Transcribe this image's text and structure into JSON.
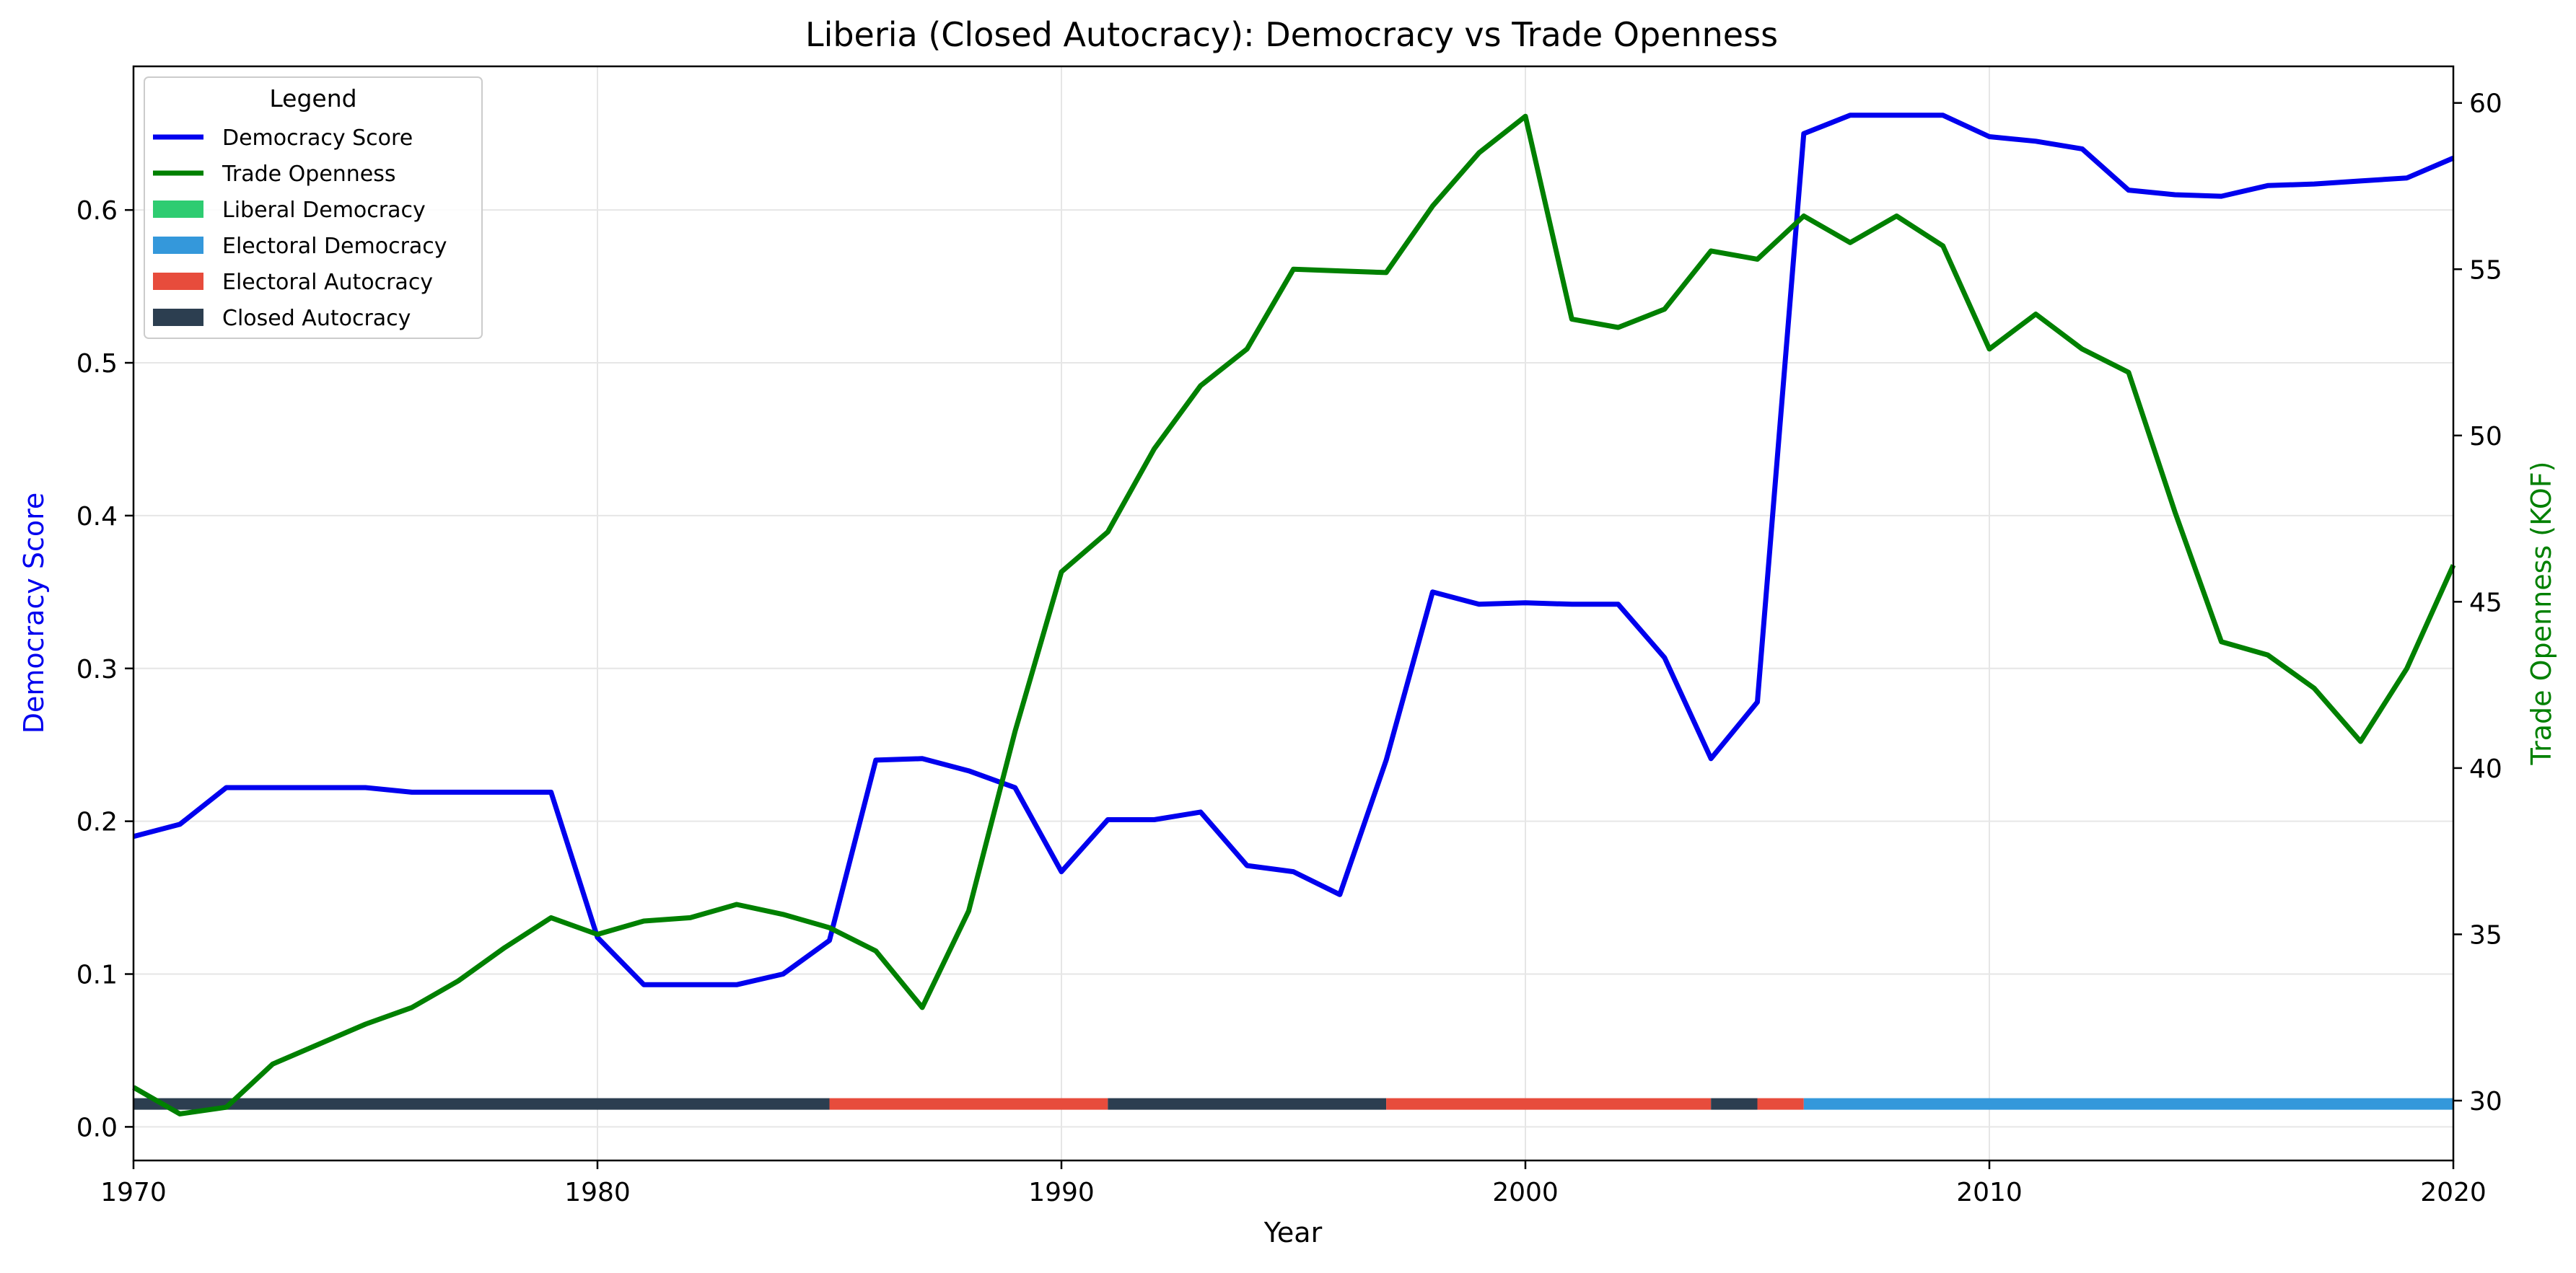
{
  "chart_data": {
    "type": "line",
    "title": "Liberia (Closed Autocracy): Democracy vs Trade Openness",
    "xlabel": "Year",
    "ylabel_left": "Democracy Score",
    "ylabel_right": "Trade Openness (KOF)",
    "xlim": [
      1970,
      2020
    ],
    "ylim_left": [
      -0.022,
      0.694
    ],
    "ylim_right": [
      28.2,
      61.1
    ],
    "x_ticks": [
      1970,
      1980,
      1990,
      2000,
      2010,
      2020
    ],
    "y_ticks_left": [
      0.0,
      0.1,
      0.2,
      0.3,
      0.4,
      0.5,
      0.6
    ],
    "y_ticks_right": [
      30,
      35,
      40,
      45,
      50,
      55,
      60
    ],
    "grid": true,
    "legend_placement": "top-left",
    "legend_title": "Legend",
    "x": [
      1970,
      1971,
      1972,
      1973,
      1974,
      1975,
      1976,
      1977,
      1978,
      1979,
      1980,
      1981,
      1982,
      1983,
      1984,
      1985,
      1986,
      1987,
      1988,
      1989,
      1990,
      1991,
      1992,
      1993,
      1994,
      1995,
      1996,
      1997,
      1998,
      1999,
      2000,
      2001,
      2002,
      2003,
      2004,
      2005,
      2006,
      2007,
      2008,
      2009,
      2010,
      2011,
      2012,
      2013,
      2014,
      2015,
      2016,
      2017,
      2018,
      2019,
      2020
    ],
    "series": [
      {
        "name": "Democracy Score",
        "axis": "left",
        "color": "#0000ee",
        "values": [
          0.19,
          0.198,
          0.222,
          0.222,
          0.222,
          0.222,
          0.219,
          0.219,
          0.219,
          0.219,
          0.124,
          0.093,
          0.093,
          0.093,
          0.1,
          0.122,
          0.24,
          0.241,
          0.233,
          0.222,
          0.167,
          0.201,
          0.201,
          0.206,
          0.171,
          0.167,
          0.152,
          0.24,
          0.35,
          0.342,
          0.343,
          0.342,
          0.342,
          0.307,
          0.241,
          0.278,
          0.65,
          0.662,
          0.662,
          0.662,
          0.648,
          0.645,
          0.64,
          0.613,
          0.61,
          0.609,
          0.616,
          0.617,
          0.619,
          0.621,
          0.634
        ]
      },
      {
        "name": "Trade Openness",
        "axis": "right",
        "color": "#008000",
        "values": [
          30.4,
          29.6,
          29.8,
          31.1,
          31.7,
          32.3,
          32.8,
          33.6,
          34.6,
          35.5,
          35.0,
          35.4,
          35.5,
          35.9,
          35.6,
          35.2,
          34.5,
          32.8,
          35.7,
          41.1,
          45.9,
          47.1,
          49.6,
          51.5,
          52.6,
          55.0,
          54.95,
          54.9,
          56.9,
          58.5,
          59.6,
          53.5,
          53.25,
          53.8,
          55.55,
          55.3,
          56.6,
          55.8,
          56.6,
          55.7,
          52.6,
          53.65,
          52.6,
          51.9,
          47.7,
          43.8,
          43.4,
          42.4,
          40.8,
          43.0,
          46.1
        ]
      }
    ],
    "regimes": {
      "legend": [
        {
          "name": "Liberal Democracy",
          "color": "#2ecc71"
        },
        {
          "name": "Electoral Democracy",
          "color": "#3498db"
        },
        {
          "name": "Electoral Autocracy",
          "color": "#e74c3c"
        },
        {
          "name": "Closed Autocracy",
          "color": "#2c3e50"
        }
      ],
      "segments": [
        {
          "start": 1970,
          "end": 1985,
          "regime": "Closed Autocracy"
        },
        {
          "start": 1985,
          "end": 1991,
          "regime": "Electoral Autocracy"
        },
        {
          "start": 1991,
          "end": 1997,
          "regime": "Closed Autocracy"
        },
        {
          "start": 1997,
          "end": 2004,
          "regime": "Electoral Autocracy"
        },
        {
          "start": 2004,
          "end": 2005,
          "regime": "Closed Autocracy"
        },
        {
          "start": 2005,
          "end": 2006,
          "regime": "Electoral Autocracy"
        },
        {
          "start": 2006,
          "end": 2020,
          "regime": "Electoral Democracy"
        }
      ],
      "band_value": 0.015
    }
  }
}
